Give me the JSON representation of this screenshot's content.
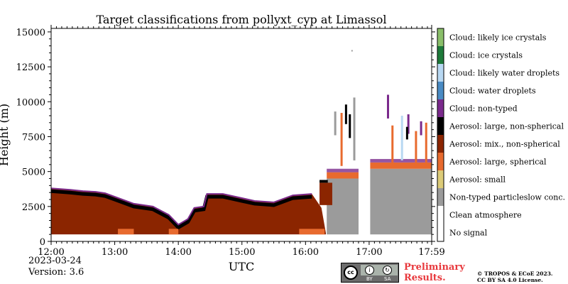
{
  "chart_data": {
    "type": "heatmap",
    "title": "Target classifications from pollyxt_cyp at Limassol",
    "xlabel": "UTC",
    "ylabel": "Height (m)",
    "xlim": [
      "12:00",
      "17:59"
    ],
    "ylim": [
      0,
      15250
    ],
    "x_ticks": [
      "12:00",
      "13:00",
      "14:00",
      "15:00",
      "16:00",
      "17:00",
      "17:59"
    ],
    "y_ticks": [
      0,
      2500,
      5000,
      7500,
      10000,
      12500,
      15000
    ],
    "legend_position": "right-colorbar",
    "categories": [
      {
        "label": "No signal",
        "color": "#ffffff"
      },
      {
        "label": "Clean atmosphere",
        "color": "#ffffff"
      },
      {
        "label": "Non-typed particleslow conc.",
        "color": "#9b9b9b"
      },
      {
        "label": "Aerosol: small",
        "color": "#dccb78"
      },
      {
        "label": "Aerosol: large, spherical",
        "color": "#e86a2e"
      },
      {
        "label": "Aerosol: mix., non-spherical",
        "color": "#8b2500"
      },
      {
        "label": "Aerosol: large, non-spherical",
        "color": "#000000"
      },
      {
        "label": "Cloud: non-typed",
        "color": "#7a2a8c"
      },
      {
        "label": "Cloud: water droplets",
        "color": "#4a8bc4"
      },
      {
        "label": "Cloud: likely water droplets",
        "color": "#b8d8f2"
      },
      {
        "label": "Cloud: ice crystals",
        "color": "#1e7a3a"
      },
      {
        "label": "Cloud: likely ice crystals",
        "color": "#8abf6a"
      }
    ],
    "layers": {
      "signal_floor_height_m": 500,
      "aerosol_top_m": [
        [
          12.0,
          3800
        ],
        [
          12.3,
          3700
        ],
        [
          12.5,
          3600
        ],
        [
          12.7,
          3550
        ],
        [
          12.85,
          3450
        ],
        [
          13.0,
          3200
        ],
        [
          13.3,
          2700
        ],
        [
          13.6,
          2500
        ],
        [
          13.85,
          1900
        ],
        [
          14.0,
          1200
        ],
        [
          14.15,
          1600
        ],
        [
          14.25,
          2400
        ],
        [
          14.4,
          2500
        ],
        [
          14.45,
          3400
        ],
        [
          14.7,
          3400
        ],
        [
          15.0,
          3100
        ],
        [
          15.2,
          2900
        ],
        [
          15.5,
          2800
        ],
        [
          15.8,
          3300
        ],
        [
          16.1,
          3400
        ],
        [
          16.25,
          2400
        ],
        [
          16.32,
          600
        ]
      ],
      "nontyped_segments": [
        {
          "x_start": "16:20",
          "x_end": "16:50",
          "top_m": 4500
        },
        {
          "x_start": "17:01",
          "x_end": "17:59",
          "top_m": 5200
        }
      ],
      "data_gap": {
        "x_start": "16:50",
        "x_end": "17:01"
      }
    }
  },
  "footer": {
    "date": "2023-03-24",
    "version": "Version: 3.6",
    "preliminary": [
      "Preliminary",
      "Results."
    ],
    "copyright": [
      "© TROPOS & ECoE 2023.",
      "CC BY SA 4.0 License."
    ],
    "cc_badge": {
      "icon": "cc-license-icon",
      "labels": [
        "BY",
        "SA"
      ]
    }
  }
}
